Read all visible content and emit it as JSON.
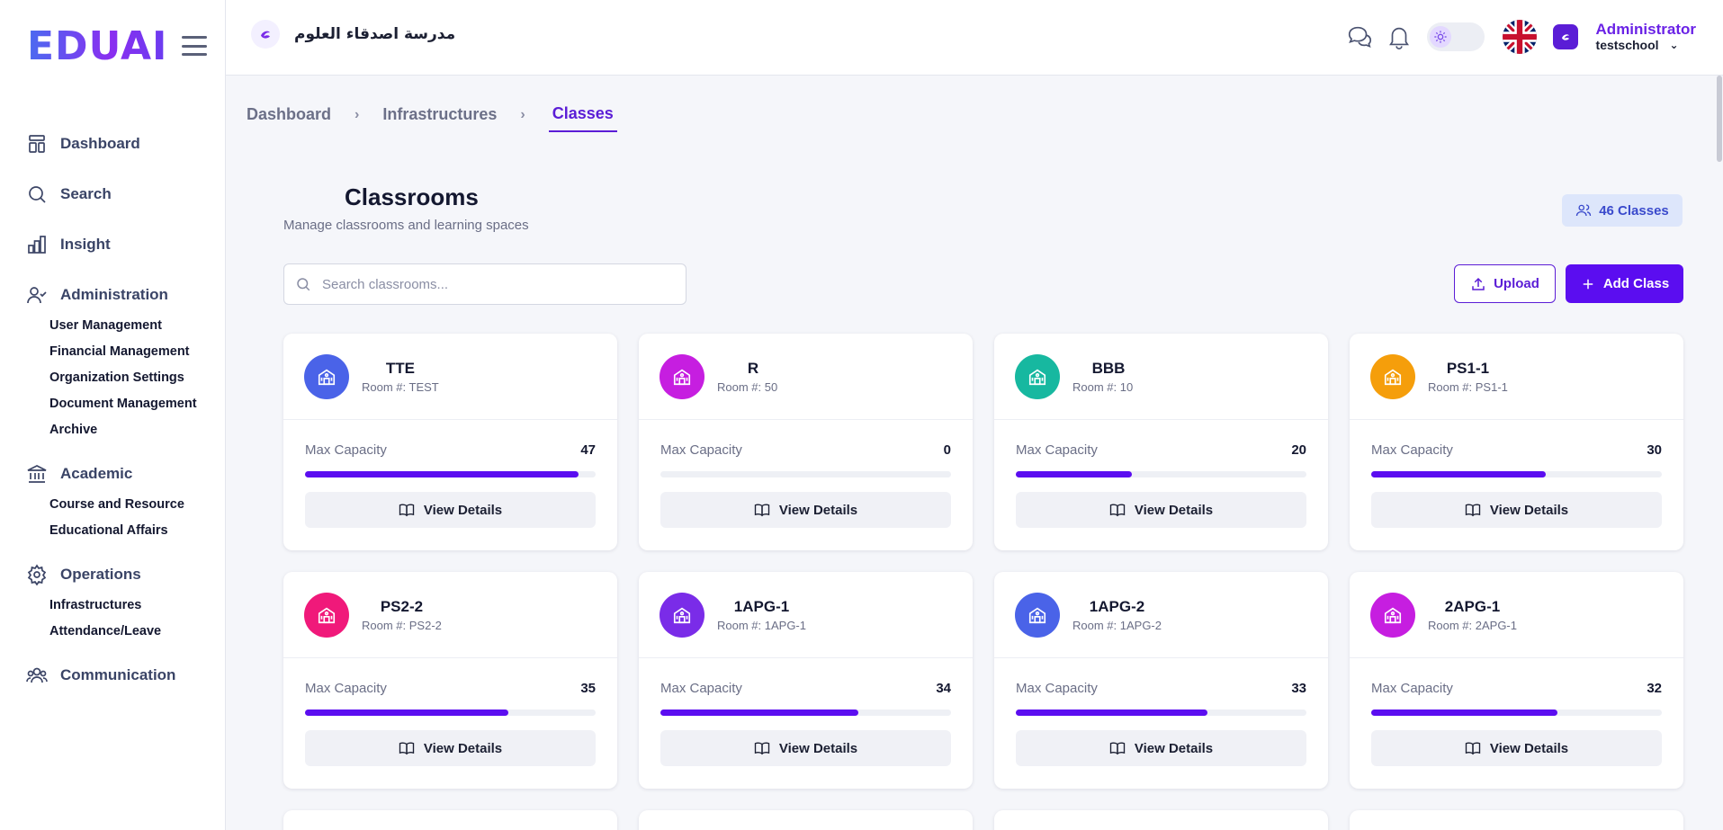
{
  "app": {
    "logo_text": "EDUAI"
  },
  "sidebar": {
    "items": [
      {
        "label": "Dashboard",
        "icon": "dashboard-icon"
      },
      {
        "label": "Search",
        "icon": "search-icon"
      },
      {
        "label": "Insight",
        "icon": "chart-icon"
      },
      {
        "label": "Administration",
        "icon": "user-check-icon",
        "sub": [
          "User Management",
          "Financial Management",
          "Organization Settings",
          "Document Management",
          "Archive"
        ]
      },
      {
        "label": "Academic",
        "icon": "institution-icon",
        "sub": [
          "Course and Resource",
          "Educational Affairs"
        ]
      },
      {
        "label": "Operations",
        "icon": "gear-icon",
        "sub": [
          "Infrastructures",
          "Attendance/Leave"
        ]
      },
      {
        "label": "Communication",
        "icon": "users-icon"
      }
    ]
  },
  "header": {
    "school_name": "مدرسة اصدقاء العلوم",
    "admin_name": "Administrator",
    "admin_org": "testschool"
  },
  "breadcrumb": {
    "items": [
      "Dashboard",
      "Infrastructures",
      "Classes"
    ]
  },
  "main": {
    "title": "Classrooms",
    "subtitle": "Manage classrooms and learning spaces",
    "count_label": "46 Classes",
    "search_placeholder": "Search classrooms...",
    "upload_label": "Upload",
    "add_label": "Add Class",
    "capacity_label": "Max Capacity",
    "view_label": "View Details"
  },
  "classes": [
    {
      "name": "TTE",
      "room": "Room #: TEST",
      "capacity": "47",
      "fill": 0.94,
      "color": "#4a63e8"
    },
    {
      "name": "R",
      "room": "Room #: 50",
      "capacity": "0",
      "fill": 0,
      "color": "#c61ee0"
    },
    {
      "name": "BBB",
      "room": "Room #: 10",
      "capacity": "20",
      "fill": 0.4,
      "color": "#17b8a0"
    },
    {
      "name": "PS1-1",
      "room": "Room #: PS1-1",
      "capacity": "30",
      "fill": 0.6,
      "color": "#f59e0b"
    },
    {
      "name": "PS2-2",
      "room": "Room #: PS2-2",
      "capacity": "35",
      "fill": 0.7,
      "color": "#f0197a"
    },
    {
      "name": "1APG-1",
      "room": "Room #: 1APG-1",
      "capacity": "34",
      "fill": 0.68,
      "color": "#7a2ce8"
    },
    {
      "name": "1APG-2",
      "room": "Room #: 1APG-2",
      "capacity": "33",
      "fill": 0.66,
      "color": "#4a63e8"
    },
    {
      "name": "2APG-1",
      "room": "Room #: 2APG-1",
      "capacity": "32",
      "fill": 0.64,
      "color": "#c61ee0"
    }
  ]
}
